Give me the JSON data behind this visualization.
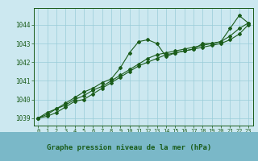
{
  "title": "Graphe pression niveau de la mer (hPa)",
  "bg_color": "#cce8f0",
  "plot_bg_color": "#cce8f0",
  "footer_bg": "#7ab8c8",
  "grid_color": "#99ccd9",
  "line_color": "#1a5c1a",
  "x_labels": [
    "0",
    "1",
    "2",
    "3",
    "4",
    "5",
    "6",
    "7",
    "8",
    "9",
    "10",
    "11",
    "12",
    "13",
    "14",
    "15",
    "16",
    "17",
    "18",
    "19",
    "20",
    "21",
    "22",
    "23"
  ],
  "ylim": [
    1038.6,
    1044.9
  ],
  "yticks": [
    1039,
    1040,
    1041,
    1042,
    1043,
    1044
  ],
  "series1": [
    1039.0,
    1039.3,
    1039.5,
    1039.8,
    1040.1,
    1040.4,
    1040.6,
    1040.9,
    1041.1,
    1041.7,
    1042.5,
    1043.1,
    1043.2,
    1043.0,
    1042.3,
    1042.5,
    1042.6,
    1042.7,
    1043.0,
    1043.0,
    1043.1,
    1043.8,
    1044.5,
    1044.1
  ],
  "series2": [
    1039.0,
    1039.2,
    1039.5,
    1039.7,
    1040.0,
    1040.2,
    1040.5,
    1040.7,
    1041.0,
    1041.3,
    1041.6,
    1041.9,
    1042.2,
    1042.4,
    1042.5,
    1042.6,
    1042.7,
    1042.8,
    1042.9,
    1043.0,
    1043.1,
    1043.4,
    1043.8,
    1044.1
  ],
  "series3": [
    1039.0,
    1039.1,
    1039.3,
    1039.6,
    1039.9,
    1040.0,
    1040.3,
    1040.6,
    1040.9,
    1041.2,
    1041.5,
    1041.8,
    1042.0,
    1042.2,
    1042.4,
    1042.5,
    1042.6,
    1042.7,
    1042.8,
    1042.9,
    1043.0,
    1043.2,
    1043.5,
    1044.0
  ]
}
